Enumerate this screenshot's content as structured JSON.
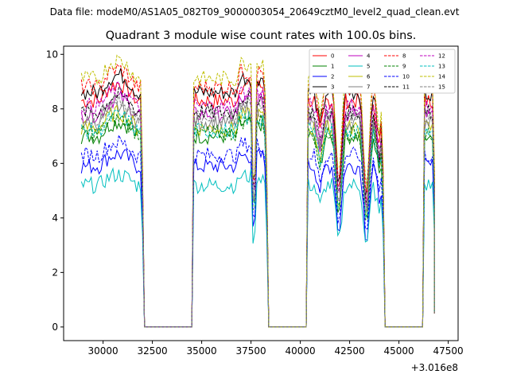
{
  "suptitle": "Data file: modeM0/AS1A05_082T09_9000003054_20649cztM0_level2_quad_clean.evt",
  "chart_data": {
    "type": "line",
    "title": "Quadrant 3 module wise count rates with 100.0s bins.",
    "xlabel": "",
    "ylabel": "",
    "x_offset_label": "+3.016e8",
    "xlim": [
      28000,
      48000
    ],
    "ylim": [
      -0.5,
      10.3
    ],
    "xticks": [
      30000,
      32500,
      35000,
      37500,
      40000,
      42500,
      45000,
      47500
    ],
    "xtick_labels": [
      "30000",
      "32500",
      "35000",
      "37500",
      "40000",
      "42500",
      "45000",
      "47500"
    ],
    "yticks": [
      0,
      2,
      4,
      6,
      8,
      10
    ],
    "ytick_labels": [
      "0",
      "2",
      "4",
      "6",
      "8",
      "10"
    ],
    "grid": false,
    "legend_placement": "top-right",
    "legend_columns": 4,
    "segments": [
      {
        "start": 28900,
        "end": 32000,
        "gap_to": 34600
      },
      {
        "start": 34600,
        "end": 38300,
        "gap_to": 40400
      },
      {
        "start": 40400,
        "end": 44200,
        "gap_to": 46300
      },
      {
        "start": 46300,
        "end": 46800
      }
    ],
    "series": [
      {
        "name": "0",
        "color": "#ff0000",
        "dash": "solid",
        "base": 8.3
      },
      {
        "name": "1",
        "color": "#008000",
        "dash": "solid",
        "base": 7.0
      },
      {
        "name": "2",
        "color": "#0000ff",
        "dash": "solid",
        "base": 5.9
      },
      {
        "name": "3",
        "color": "#000000",
        "dash": "solid",
        "base": 8.6
      },
      {
        "name": "4",
        "color": "#bf00bf",
        "dash": "solid",
        "base": 7.8
      },
      {
        "name": "5",
        "color": "#00bfbf",
        "dash": "solid",
        "base": 5.2
      },
      {
        "name": "6",
        "color": "#bfbf00",
        "dash": "solid",
        "base": 7.3
      },
      {
        "name": "7",
        "color": "#808080",
        "dash": "solid",
        "base": 7.5
      },
      {
        "name": "8",
        "color": "#ff0000",
        "dash": "dashed",
        "base": 8.8
      },
      {
        "name": "9",
        "color": "#008000",
        "dash": "dashed",
        "base": 7.1
      },
      {
        "name": "10",
        "color": "#0000ff",
        "dash": "dashed",
        "base": 6.3
      },
      {
        "name": "11",
        "color": "#000000",
        "dash": "dashed",
        "base": 7.9
      },
      {
        "name": "12",
        "color": "#bf00bf",
        "dash": "dashed",
        "base": 8.1
      },
      {
        "name": "13",
        "color": "#00bfbf",
        "dash": "dashed",
        "base": 7.2
      },
      {
        "name": "14",
        "color": "#bfbf00",
        "dash": "dashed",
        "base": 9.1
      },
      {
        "name": "15",
        "color": "#808080",
        "dash": "dashed",
        "base": 7.7
      }
    ]
  }
}
